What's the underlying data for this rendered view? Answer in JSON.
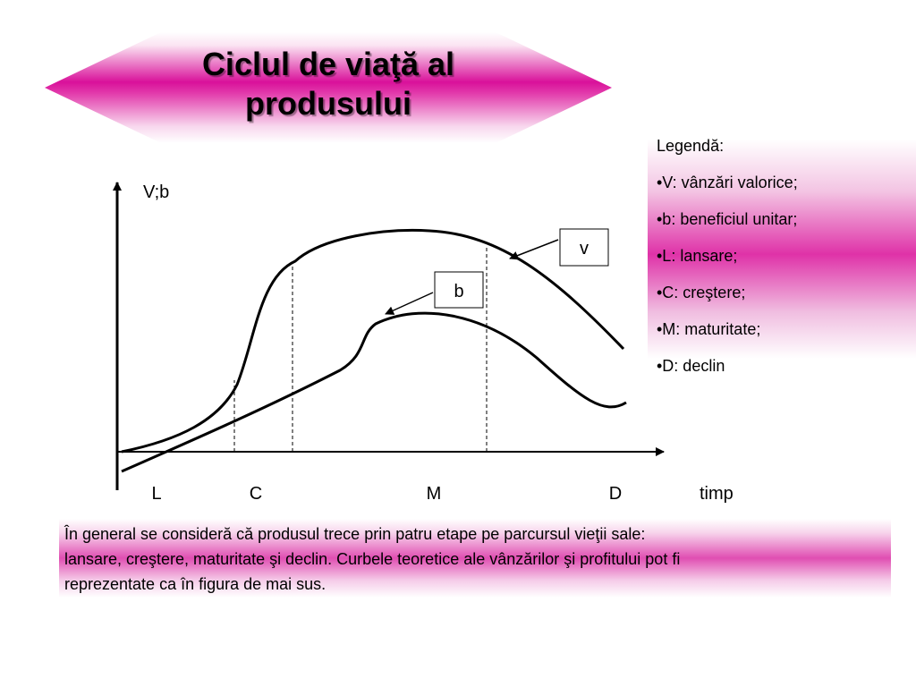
{
  "title": {
    "line1": "Ciclul de viaţă al",
    "line2": "produsului",
    "colors": {
      "banner": "#d9119a",
      "banner_light": "#ffffff"
    }
  },
  "diagram": {
    "y_axis_label": "V;b",
    "x_axis_label": "timp",
    "stages": [
      "L",
      "C",
      "M",
      "D"
    ],
    "curve_labels": {
      "sales": "v",
      "profit": "b"
    }
  },
  "legend": {
    "heading": "Legendă:",
    "items": [
      "•V: vânzări valorice;",
      "•b: beneficiul unitar;",
      "•L: lansare;",
      "•C: creştere;",
      "•M: maturitate;",
      "•D: declin"
    ],
    "colors": {
      "band": "#df32a8"
    }
  },
  "note": {
    "lines": [
      "În general se consideră că produsul trece prin patru etape pe parcursul vieţii sale:",
      "lansare, creştere, maturitate şi declin. Curbele teoretice ale vânzărilor şi profitului pot fi",
      "reprezentate ca în figura de mai sus."
    ],
    "colors": {
      "band": "#e04eb2"
    }
  }
}
